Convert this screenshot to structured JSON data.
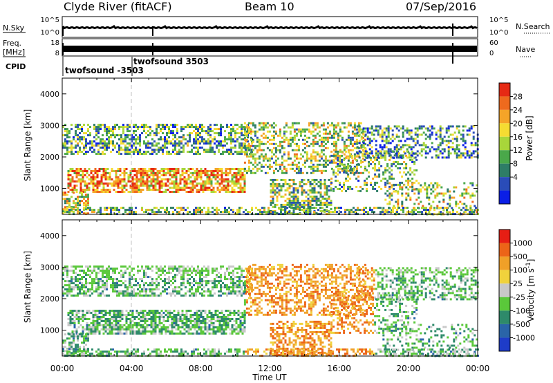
{
  "header": {
    "station": "Clyde River (fitACF)",
    "beam": "Beam 10",
    "date": "07/Sep/2016"
  },
  "top_panels": {
    "nsky_label": "N.Sky",
    "nsearch_label": "N.Search",
    "noise_ticks_left": [
      "10^5",
      "10^0"
    ],
    "noise_ticks_right": [
      "10^5",
      "10^0"
    ],
    "freq_label": "Freq.",
    "freq_unit": "[MHz]",
    "freq_ticks": [
      "18",
      "8"
    ],
    "nave_label": "Nave",
    "nave_ticks": [
      "60",
      "0"
    ],
    "cpid_label": "CPID",
    "cpid_entries": [
      {
        "text": "twofsound -3503",
        "start_hour": 0.0
      },
      {
        "text": "twofsound 3503",
        "start_hour": 5.1
      }
    ]
  },
  "x_axis": {
    "label": "Time UT",
    "ticks": [
      "00:00",
      "04:00",
      "08:00",
      "12:00",
      "16:00",
      "20:00",
      "00:00"
    ],
    "range_hours": [
      0,
      24
    ]
  },
  "chart_data": [
    {
      "type": "heatmap",
      "ylabel": "Slant Range [km]",
      "y_ticks": [
        1000,
        2000,
        3000,
        4000
      ],
      "ylim": [
        180,
        4500
      ],
      "xlim_hours": [
        0,
        24
      ],
      "colorbar": {
        "label": "Power [dB]",
        "ticks": [
          4,
          8,
          12,
          16,
          20,
          24,
          28
        ],
        "colors": [
          "#0a1ee6",
          "#2a4cb8",
          "#2e7d66",
          "#4aa84a",
          "#a8d63a",
          "#f5dc32",
          "#f5a428",
          "#ee6a1e",
          "#e62a14"
        ]
      }
    },
    {
      "type": "heatmap",
      "ylabel": "Slant Range [km]",
      "y_ticks": [
        1000,
        2000,
        3000,
        4000
      ],
      "ylim": [
        180,
        4500
      ],
      "xlim_hours": [
        0,
        24
      ],
      "colorbar": {
        "label": "Velocity [m s^-1]",
        "ticks": [
          "1000",
          "500",
          "100",
          "25",
          "-25",
          "-100",
          "-500",
          "-1000"
        ],
        "colors": [
          "#1e3cc8",
          "#2a64a8",
          "#2e8a6a",
          "#5ac83a",
          "#c8c8c8",
          "#f0d23c",
          "#f0a028",
          "#ec6418",
          "#e61e14"
        ]
      }
    }
  ],
  "colors": {
    "dashed_marker": "#c0c0c0"
  }
}
